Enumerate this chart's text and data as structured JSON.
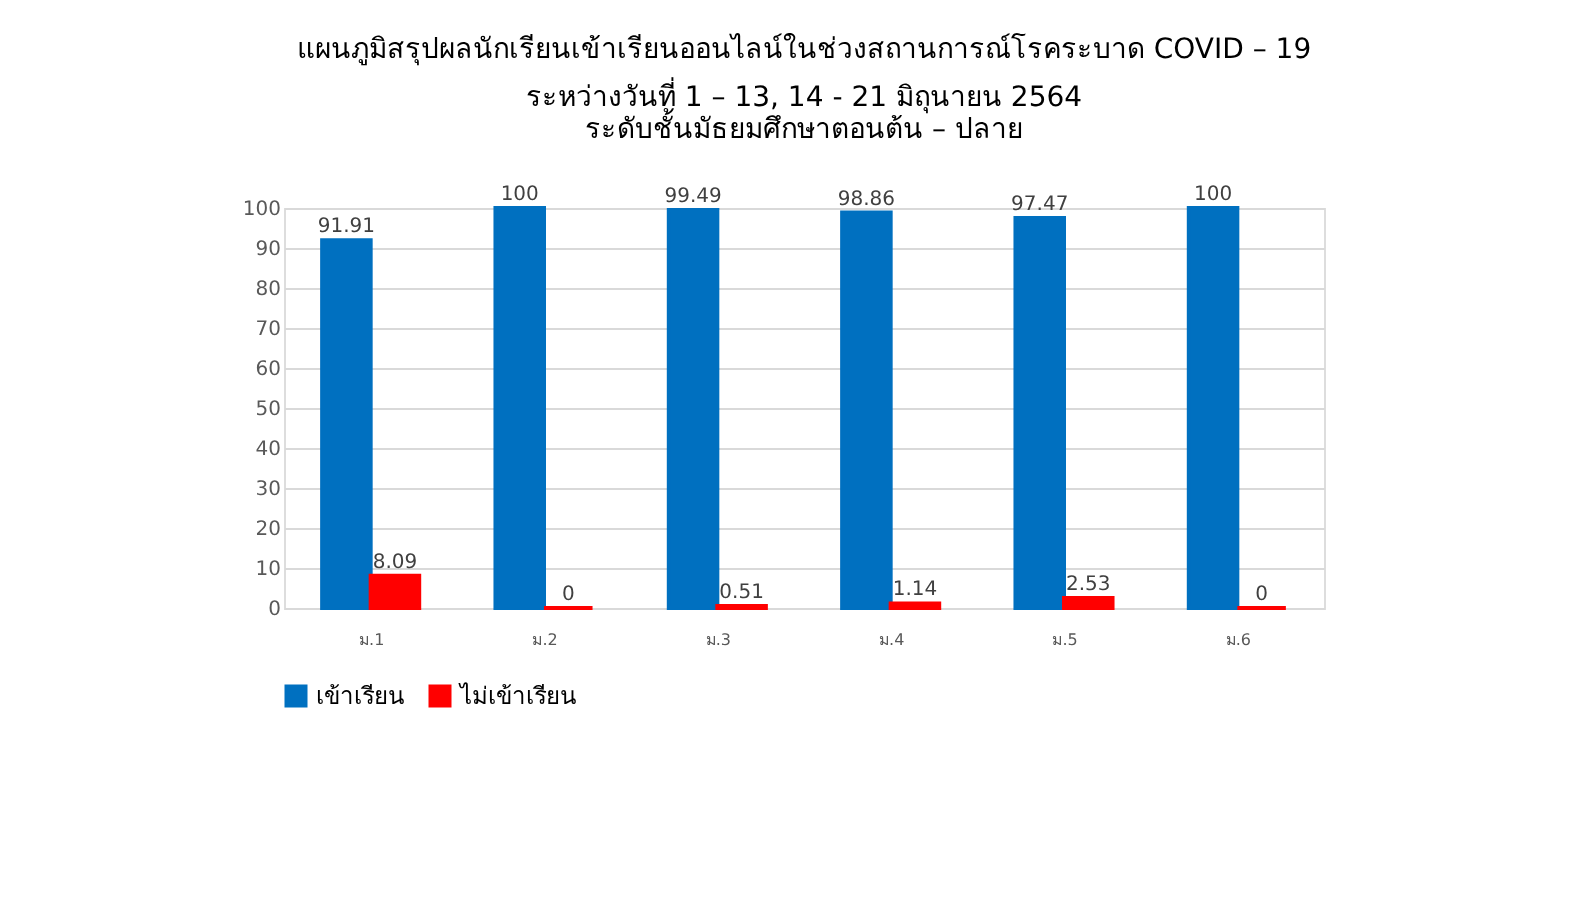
{
  "chart_data": {
    "type": "bar",
    "title": "แผนภูมิสรุปผลนักเรียนเข้าเรียนออนไลน์ในช่วงสถานการณ์โรคระบาด COVID – 19",
    "subtitle": "ระหว่างวันที่ 1 – 13, 14 - 21 มิถุนายน  2564\nระดับชั้นมัธยมศึกษาตอนต้น – ปลาย",
    "categories": [
      "ม.1",
      "ม.2",
      "ม.3",
      "ม.4",
      "ม.5",
      "ม.6"
    ],
    "series": [
      {
        "name": "เข้าเรียน",
        "color": "#0070c0",
        "values": [
          91.91,
          100,
          99.49,
          98.86,
          97.47,
          100
        ]
      },
      {
        "name": "ไม่เข้าเรียน",
        "color": "#ff0000",
        "values": [
          8.09,
          0,
          0.51,
          1.14,
          2.53,
          0
        ]
      }
    ],
    "ylim": [
      0,
      100
    ],
    "yticks": [
      0,
      10,
      20,
      30,
      40,
      50,
      60,
      70,
      80,
      90,
      100
    ],
    "grid": "y",
    "legend": "bottom",
    "data_labels": true
  }
}
